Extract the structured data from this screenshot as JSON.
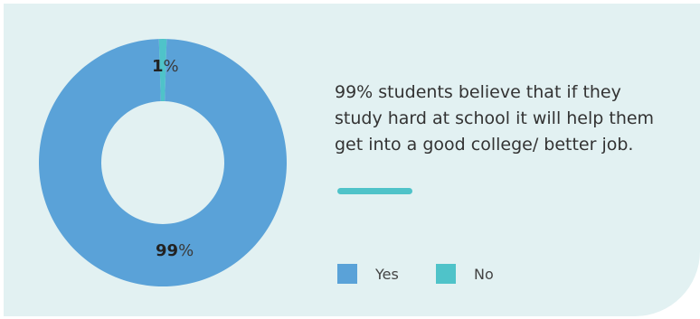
{
  "chart_data": {
    "type": "pie",
    "donut": true,
    "categories": [
      "Yes",
      "No"
    ],
    "values": [
      99,
      1
    ],
    "labels": [
      {
        "value": "99",
        "unit": "%"
      },
      {
        "value": "1",
        "unit": "%"
      }
    ],
    "colors": [
      "#5aa2d8",
      "#4fc3c9"
    ],
    "legend_placement": "bottom-right"
  },
  "caption": {
    "text": "99% students believe that if they study hard at school it will help them get into a good college/ better job."
  },
  "legend": {
    "items": [
      {
        "label": "Yes",
        "color": "#5aa2d8"
      },
      {
        "label": "No",
        "color": "#4fc3c9"
      }
    ]
  },
  "colors": {
    "panel": "#e2f1f2",
    "accent_bar": "#4fc3c9"
  }
}
